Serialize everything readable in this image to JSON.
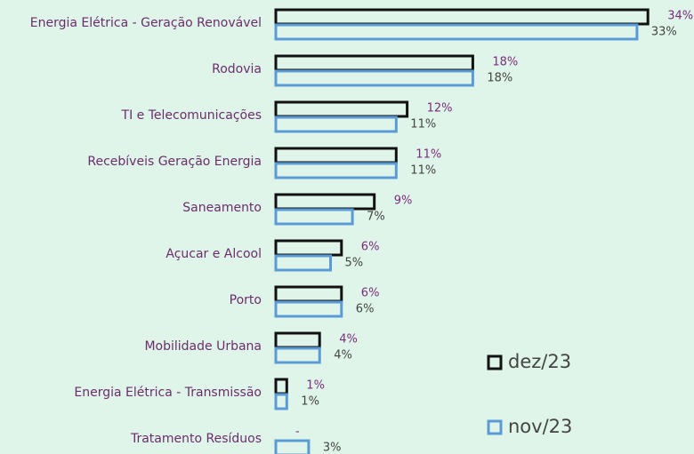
{
  "chart_data": {
    "type": "bar",
    "categories": [
      "Energia Elétrica - Geração Renovável",
      "Rodovia",
      "TI e Telecomunicações",
      "Recebíveis Geração Energia",
      "Saneamento",
      "Açucar e Alcool",
      "Porto",
      "Mobilidade Urbana",
      "Energia Elétrica - Transmissão",
      "Tratamento Resíduos"
    ],
    "series": [
      {
        "name": "dez/23",
        "color": "#111111",
        "label_color": "#7a2d7a",
        "values": [
          34,
          18,
          12,
          11,
          9,
          6,
          6,
          4,
          1,
          null
        ],
        "value_labels": [
          "34%",
          "18%",
          "12%",
          "11%",
          "9%",
          "6%",
          "6%",
          "4%",
          "1%",
          "-"
        ]
      },
      {
        "name": "nov/23",
        "color": "#5b9bd5",
        "label_color": "#444444",
        "values": [
          33,
          18,
          11,
          11,
          7,
          5,
          6,
          4,
          1,
          3
        ],
        "value_labels": [
          "33%",
          "18%",
          "11%",
          "11%",
          "7%",
          "5%",
          "6%",
          "4%",
          "1%",
          "3%"
        ]
      }
    ]
  }
}
